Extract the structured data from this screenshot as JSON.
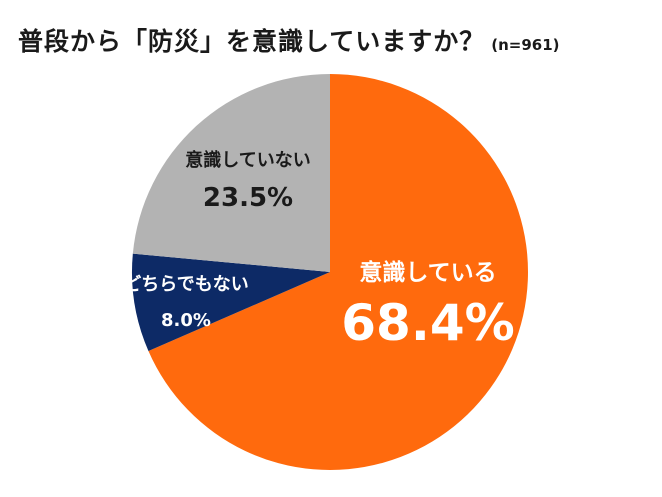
{
  "chart_data": {
    "type": "pie",
    "title": "普段から「防災」を意識していますか？",
    "subtitle": "(n=961)",
    "unit": "%",
    "slices": [
      {
        "label": "意識している",
        "value": 68.4,
        "value_label": "68.4%",
        "color": "#ff6a0d",
        "label_color": "#ffffff"
      },
      {
        "label": "どちらでもない",
        "value": 8.0,
        "value_label": "8.0%",
        "color": "#0d2a66",
        "label_color": "#ffffff"
      },
      {
        "label": "意識していない",
        "value": 23.5,
        "value_label": "23.5%",
        "color": "#b3b3b3",
        "label_color": "#1a1a1a"
      }
    ]
  }
}
